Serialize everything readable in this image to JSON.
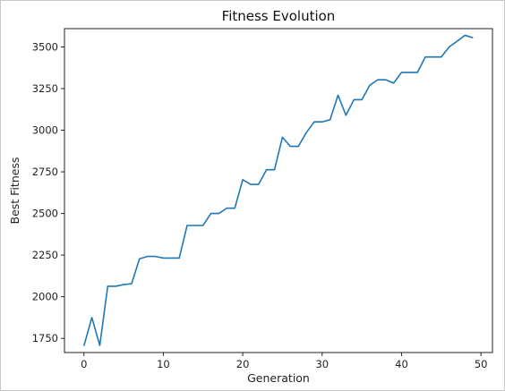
{
  "chart_data": {
    "type": "line",
    "title": "Fitness Evolution",
    "xlabel": "Generation",
    "ylabel": "Best Fitness",
    "xlim": [
      -2.45,
      51.45
    ],
    "ylim": [
      1665,
      3610
    ],
    "xticks": [
      0,
      10,
      20,
      30,
      40,
      50
    ],
    "yticks": [
      1750,
      2000,
      2250,
      2500,
      2750,
      3000,
      3250,
      3500
    ],
    "xtick_labels": [
      "0",
      "10",
      "20",
      "30",
      "40",
      "50"
    ],
    "ytick_labels": [
      "1750",
      "2000",
      "2250",
      "2500",
      "2750",
      "3000",
      "3250",
      "3500"
    ],
    "grid": false,
    "line_color": "#1f77b4",
    "series": [
      {
        "x": [
          0,
          1,
          2,
          3,
          4,
          5,
          6,
          7,
          8,
          9,
          10,
          11,
          12,
          13,
          14,
          15,
          16,
          17,
          18,
          19,
          20,
          21,
          22,
          23,
          24,
          25,
          26,
          27,
          28,
          29,
          30,
          31,
          32,
          33,
          34,
          35,
          36,
          37,
          38,
          39,
          40,
          41,
          42,
          43,
          44,
          45,
          46,
          47,
          48,
          49
        ],
        "values": [
          1705,
          1875,
          1708,
          2063,
          2063,
          2073,
          2078,
          2228,
          2242,
          2242,
          2232,
          2232,
          2232,
          2428,
          2428,
          2428,
          2500,
          2500,
          2532,
          2532,
          2703,
          2675,
          2675,
          2763,
          2763,
          2958,
          2903,
          2903,
          2985,
          3050,
          3050,
          3063,
          3210,
          3090,
          3183,
          3183,
          3270,
          3303,
          3303,
          3283,
          3347,
          3347,
          3347,
          3440,
          3440,
          3440,
          3500,
          3535,
          3570,
          3555
        ]
      }
    ]
  }
}
